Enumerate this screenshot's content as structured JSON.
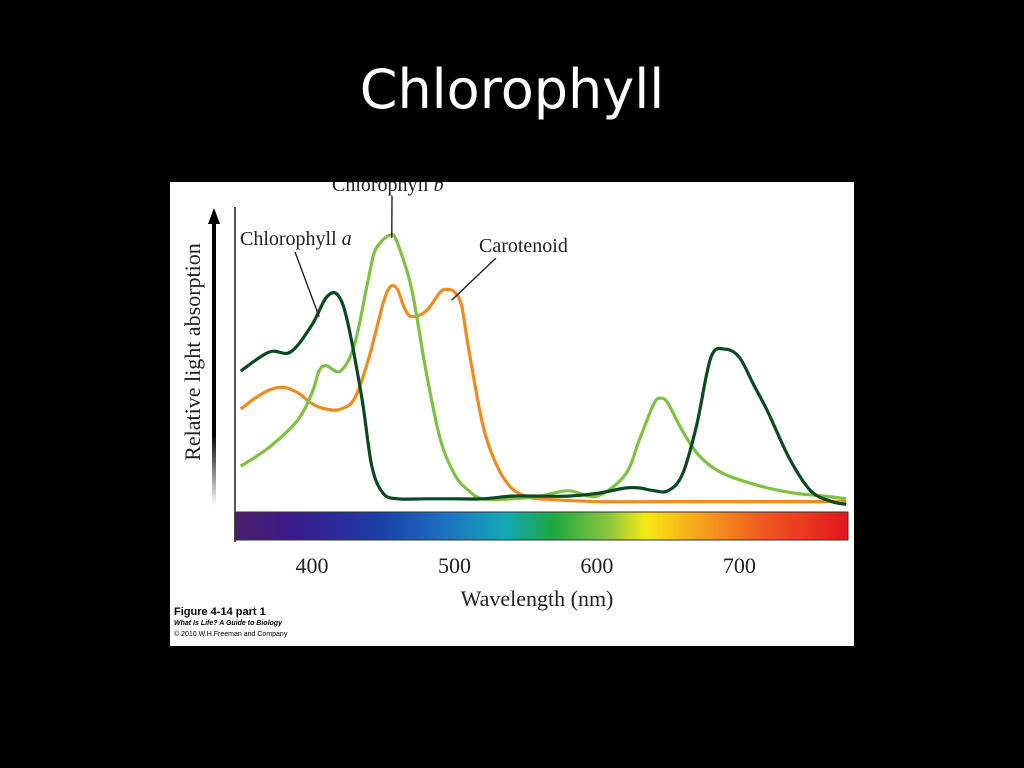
{
  "slide": {
    "title": "Chlorophyll"
  },
  "figure": {
    "caption": "Figure 4-14 part 1",
    "source": "What Is Life? A Guide to Biology",
    "copyright": "© 2010 W.H.Freeman and Company"
  },
  "chart_data": {
    "type": "line",
    "xlabel": "Wavelength (nm)",
    "ylabel": "Relative light absorption",
    "xlim": [
      350,
      780
    ],
    "ylim": [
      0,
      1
    ],
    "xticks": [
      400,
      500,
      600,
      700
    ],
    "grid": false,
    "legend": "none",
    "spectrum_bar": true,
    "series": [
      {
        "name": "Chlorophyll a",
        "name_main": "Chlorophyll ",
        "name_ital": "a",
        "color": "#0a4a1e",
        "x": [
          350,
          370,
          385,
          400,
          410,
          418,
          425,
          435,
          442,
          450,
          460,
          480,
          500,
          520,
          540,
          560,
          580,
          600,
          620,
          630,
          640,
          650,
          660,
          670,
          680,
          690,
          700,
          710,
          720,
          735,
          750,
          765,
          775
        ],
        "y": [
          0.5,
          0.57,
          0.57,
          0.67,
          0.77,
          0.78,
          0.68,
          0.4,
          0.15,
          0.05,
          0.03,
          0.03,
          0.03,
          0.03,
          0.04,
          0.04,
          0.04,
          0.05,
          0.07,
          0.07,
          0.06,
          0.06,
          0.12,
          0.3,
          0.55,
          0.58,
          0.55,
          0.45,
          0.35,
          0.18,
          0.06,
          0.02,
          0.01
        ]
      },
      {
        "name": "Chlorophyll b",
        "name_main": "Chlorophyll ",
        "name_ital": "b",
        "color": "#7dc242",
        "x": [
          350,
          370,
          390,
          400,
          405,
          410,
          420,
          430,
          440,
          445,
          455,
          460,
          470,
          480,
          490,
          500,
          510,
          520,
          540,
          560,
          580,
          600,
          620,
          630,
          640,
          645,
          650,
          660,
          670,
          680,
          690,
          700,
          720,
          740,
          760,
          775
        ],
        "y": [
          0.15,
          0.22,
          0.32,
          0.42,
          0.5,
          0.52,
          0.5,
          0.6,
          0.85,
          0.95,
          1.0,
          0.97,
          0.8,
          0.5,
          0.25,
          0.12,
          0.06,
          0.03,
          0.03,
          0.04,
          0.06,
          0.04,
          0.12,
          0.25,
          0.38,
          0.4,
          0.38,
          0.28,
          0.2,
          0.15,
          0.12,
          0.1,
          0.07,
          0.05,
          0.04,
          0.03
        ]
      },
      {
        "name": "Carotenoid",
        "color": "#f08c1e",
        "x": [
          350,
          360,
          370,
          380,
          390,
          400,
          410,
          420,
          430,
          440,
          450,
          455,
          460,
          465,
          470,
          480,
          490,
          495,
          500,
          505,
          510,
          520,
          530,
          540,
          550,
          560,
          600,
          650,
          700,
          750,
          775
        ],
        "y": [
          0.36,
          0.4,
          0.43,
          0.44,
          0.42,
          0.38,
          0.36,
          0.36,
          0.4,
          0.55,
          0.75,
          0.81,
          0.8,
          0.73,
          0.7,
          0.72,
          0.79,
          0.8,
          0.79,
          0.74,
          0.58,
          0.3,
          0.15,
          0.07,
          0.04,
          0.03,
          0.02,
          0.02,
          0.02,
          0.02,
          0.02
        ]
      }
    ],
    "annotations": [
      {
        "target": "Chlorophyll a",
        "x": 405,
        "y": 0.7
      },
      {
        "target": "Chlorophyll b",
        "x": 456,
        "y": 0.99
      },
      {
        "target": "Carotenoid",
        "x": 498,
        "y": 0.76
      }
    ]
  }
}
